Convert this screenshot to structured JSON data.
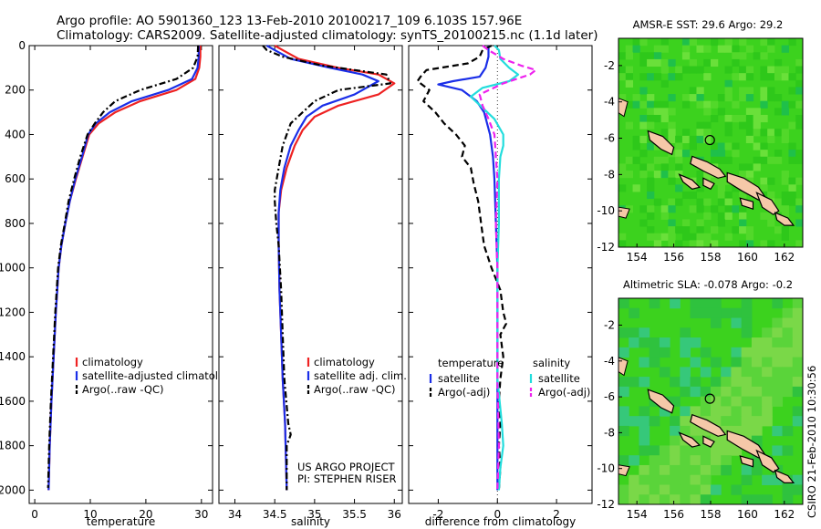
{
  "header": {
    "line1": "Argo profile: AO 5901360_123 13-Feb-2010 20100217_109 6.103S 157.96E",
    "line2": "Climatology: CARS2009. Satellite-adjusted climatology: synTS_20100215.nc (1.1d later)"
  },
  "footer_stamp": "CSIRO 21-Feb-2010 10:30:56",
  "colors": {
    "climatology": "#ee2222",
    "satellite": "#1a2ee8",
    "argo": "#000000",
    "sat_salinity": "#22dddd",
    "argo_salinity": "#ee22ee",
    "map_base": "#3cd21e",
    "land": "#f5c8a8"
  },
  "chart_data": [
    {
      "type": "line",
      "xlabel": "temperature",
      "ylabel": "",
      "xlim": [
        -1,
        32
      ],
      "ylim": [
        2060,
        0
      ],
      "x_ticks": [
        0,
        10,
        20,
        30
      ],
      "y_ticks": [
        0,
        200,
        400,
        600,
        800,
        1000,
        1200,
        1400,
        1600,
        1800,
        2000
      ],
      "legend": {
        "position": "lower-right",
        "entries": [
          "climatology",
          "satellite-adjusted climatology",
          "Argo(..raw -QC)"
        ]
      },
      "series": [
        {
          "name": "climatology",
          "style": "solid",
          "values": [
            [
              29.8,
              0
            ],
            [
              29.8,
              50
            ],
            [
              29.6,
              100
            ],
            [
              28.9,
              150
            ],
            [
              25.5,
              200
            ],
            [
              19,
              250
            ],
            [
              14.5,
              300
            ],
            [
              11.5,
              350
            ],
            [
              9.8,
              400
            ],
            [
              8.6,
              500
            ],
            [
              7.4,
              600
            ],
            [
              6.3,
              700
            ],
            [
              5.5,
              800
            ],
            [
              4.8,
              900
            ],
            [
              4.3,
              1000
            ],
            [
              3.8,
              1200
            ],
            [
              3.4,
              1400
            ],
            [
              3.0,
              1600
            ],
            [
              2.7,
              1800
            ],
            [
              2.5,
              2000
            ]
          ]
        },
        {
          "name": "satellite-adjusted climatology",
          "style": "solid",
          "values": [
            [
              29.5,
              0
            ],
            [
              29.5,
              50
            ],
            [
              29.3,
              100
            ],
            [
              28.3,
              150
            ],
            [
              24,
              200
            ],
            [
              17.5,
              250
            ],
            [
              13.5,
              300
            ],
            [
              11,
              350
            ],
            [
              9.6,
              400
            ],
            [
              8.5,
              500
            ],
            [
              7.3,
              600
            ],
            [
              6.3,
              700
            ],
            [
              5.5,
              800
            ],
            [
              4.8,
              900
            ],
            [
              4.3,
              1000
            ],
            [
              3.8,
              1200
            ],
            [
              3.4,
              1400
            ],
            [
              3.0,
              1600
            ],
            [
              2.7,
              1800
            ],
            [
              2.5,
              2000
            ]
          ]
        },
        {
          "name": "Argo(..raw -QC)",
          "style": "dashdot",
          "values": [
            [
              29.4,
              0
            ],
            [
              29.3,
              50
            ],
            [
              28.5,
              100
            ],
            [
              25.5,
              150
            ],
            [
              19,
              200
            ],
            [
              14.5,
              250
            ],
            [
              12.3,
              300
            ],
            [
              10.8,
              350
            ],
            [
              9.5,
              400
            ],
            [
              8.2,
              500
            ],
            [
              7.1,
              600
            ],
            [
              6.1,
              700
            ],
            [
              5.4,
              800
            ],
            [
              4.7,
              900
            ],
            [
              4.2,
              1000
            ],
            [
              3.7,
              1200
            ],
            [
              3.3,
              1400
            ],
            [
              2.9,
              1600
            ],
            [
              2.6,
              1800
            ],
            [
              2.4,
              1990
            ]
          ]
        }
      ]
    },
    {
      "type": "line",
      "xlabel": "salinity",
      "xlim": [
        33.8,
        36.1
      ],
      "ylim": [
        2060,
        0
      ],
      "x_ticks": [
        34,
        34.5,
        35,
        35.5,
        36
      ],
      "legend": {
        "position": "lower-right",
        "entries": [
          "climatology",
          "satellite adj. clim.",
          "Argo(..raw -QC)"
        ]
      },
      "annotation": [
        "US ARGO PROJECT",
        "PI: STEPHEN RISER"
      ],
      "series": [
        {
          "name": "climatology",
          "style": "solid",
          "values": [
            [
              34.5,
              0
            ],
            [
              34.6,
              20
            ],
            [
              34.8,
              60
            ],
            [
              35.3,
              100
            ],
            [
              35.8,
              130
            ],
            [
              36.0,
              170
            ],
            [
              35.8,
              220
            ],
            [
              35.3,
              270
            ],
            [
              35.0,
              320
            ],
            [
              34.85,
              380
            ],
            [
              34.75,
              450
            ],
            [
              34.65,
              550
            ],
            [
              34.58,
              650
            ],
            [
              34.55,
              750
            ],
            [
              34.55,
              900
            ],
            [
              34.56,
              1100
            ],
            [
              34.58,
              1300
            ],
            [
              34.6,
              1500
            ],
            [
              34.63,
              1700
            ],
            [
              34.65,
              2000
            ]
          ]
        },
        {
          "name": "satellite adj. clim.",
          "style": "solid",
          "values": [
            [
              34.4,
              0
            ],
            [
              34.5,
              20
            ],
            [
              34.7,
              60
            ],
            [
              35.2,
              100
            ],
            [
              35.6,
              130
            ],
            [
              35.8,
              160
            ],
            [
              35.5,
              220
            ],
            [
              35.1,
              270
            ],
            [
              34.9,
              320
            ],
            [
              34.8,
              380
            ],
            [
              34.7,
              450
            ],
            [
              34.62,
              550
            ],
            [
              34.57,
              650
            ],
            [
              34.55,
              750
            ],
            [
              34.55,
              900
            ],
            [
              34.56,
              1100
            ],
            [
              34.58,
              1300
            ],
            [
              34.6,
              1500
            ],
            [
              34.63,
              1700
            ],
            [
              34.65,
              2000
            ]
          ]
        },
        {
          "name": "Argo(..raw -QC)",
          "style": "dashdot",
          "values": [
            [
              34.35,
              0
            ],
            [
              34.4,
              20
            ],
            [
              34.6,
              50
            ],
            [
              35.1,
              90
            ],
            [
              35.9,
              130
            ],
            [
              35.95,
              170
            ],
            [
              35.3,
              200
            ],
            [
              35.0,
              250
            ],
            [
              34.85,
              300
            ],
            [
              34.7,
              350
            ],
            [
              34.65,
              400
            ],
            [
              34.6,
              450
            ],
            [
              34.55,
              550
            ],
            [
              34.5,
              650
            ],
            [
              34.5,
              700
            ],
            [
              34.52,
              800
            ],
            [
              34.55,
              900
            ],
            [
              34.58,
              1100
            ],
            [
              34.6,
              1300
            ],
            [
              34.62,
              1500
            ],
            [
              34.67,
              1700
            ],
            [
              34.7,
              1750
            ],
            [
              34.65,
              1800
            ],
            [
              34.65,
              2000
            ]
          ]
        }
      ]
    },
    {
      "type": "line",
      "xlabel": "difference from climatology",
      "xlim": [
        -3,
        3.2
      ],
      "ylim": [
        2060,
        0
      ],
      "x_ticks": [
        -2,
        0,
        2
      ],
      "reference_line_x": 0,
      "legend": {
        "position": "lower-center",
        "groups": [
          {
            "title": "temperature",
            "entries": [
              "satellite",
              "Argo(-adj)"
            ]
          },
          {
            "title": "salinity",
            "entries": [
              "satellite",
              "Argo(-adj)"
            ]
          }
        ]
      },
      "series": [
        {
          "name": "satellite",
          "group": "temperature",
          "style": "solid",
          "values": [
            [
              -0.3,
              0
            ],
            [
              -0.3,
              50
            ],
            [
              -0.4,
              100
            ],
            [
              -0.6,
              140
            ],
            [
              -1.5,
              160
            ],
            [
              -2.0,
              175
            ],
            [
              -1.2,
              200
            ],
            [
              -0.7,
              250
            ],
            [
              -0.45,
              300
            ],
            [
              -0.25,
              400
            ],
            [
              -0.15,
              500
            ],
            [
              -0.1,
              600
            ],
            [
              -0.05,
              800
            ],
            [
              0,
              1000
            ],
            [
              0,
              2000
            ]
          ]
        },
        {
          "name": "Argo(-adj)",
          "group": "temperature",
          "style": "dashed",
          "values": [
            [
              -0.2,
              0
            ],
            [
              -0.5,
              20
            ],
            [
              -0.6,
              50
            ],
            [
              -1.0,
              80
            ],
            [
              -2.4,
              110
            ],
            [
              -2.6,
              140
            ],
            [
              -2.7,
              160
            ],
            [
              -2.3,
              200
            ],
            [
              -2.5,
              250
            ],
            [
              -2.1,
              300
            ],
            [
              -1.8,
              350
            ],
            [
              -1.4,
              400
            ],
            [
              -1.1,
              450
            ],
            [
              -1.2,
              500
            ],
            [
              -0.9,
              550
            ],
            [
              -0.8,
              620
            ],
            [
              -0.65,
              700
            ],
            [
              -0.55,
              800
            ],
            [
              -0.45,
              900
            ],
            [
              -0.2,
              1000
            ],
            [
              0.1,
              1100
            ],
            [
              0.2,
              1200
            ],
            [
              0.3,
              1250
            ],
            [
              0.1,
              1300
            ],
            [
              0.2,
              1400
            ],
            [
              0.1,
              1500
            ],
            [
              0.05,
              1600
            ],
            [
              0.1,
              1700
            ],
            [
              0.05,
              1800
            ],
            [
              0.1,
              1900
            ],
            [
              0.05,
              2000
            ]
          ]
        },
        {
          "name": "satellite",
          "group": "salinity",
          "style": "solid",
          "values": [
            [
              -0.1,
              0
            ],
            [
              0.05,
              20
            ],
            [
              0.1,
              60
            ],
            [
              0.4,
              100
            ],
            [
              0.7,
              130
            ],
            [
              0.4,
              160
            ],
            [
              -0.5,
              190
            ],
            [
              -0.9,
              230
            ],
            [
              -0.5,
              280
            ],
            [
              -0.1,
              330
            ],
            [
              0.2,
              400
            ],
            [
              0.2,
              450
            ],
            [
              0.1,
              500
            ],
            [
              0.05,
              600
            ],
            [
              0.05,
              800
            ],
            [
              0,
              1000
            ],
            [
              0,
              1500
            ],
            [
              0.15,
              1700
            ],
            [
              0.2,
              1800
            ],
            [
              0.1,
              1900
            ],
            [
              0.05,
              2000
            ]
          ]
        },
        {
          "name": "Argo(-adj)",
          "group": "salinity",
          "style": "dashed",
          "values": [
            [
              -0.5,
              0
            ],
            [
              -0.3,
              20
            ],
            [
              0.2,
              60
            ],
            [
              0.8,
              90
            ],
            [
              1.3,
              110
            ],
            [
              1.1,
              130
            ],
            [
              0.2,
              170
            ],
            [
              -0.6,
              220
            ],
            [
              -0.5,
              270
            ],
            [
              -0.3,
              330
            ],
            [
              -0.1,
              400
            ],
            [
              -0.05,
              500
            ],
            [
              0,
              600
            ],
            [
              -0.05,
              800
            ],
            [
              0,
              1000
            ],
            [
              0,
              1500
            ],
            [
              0.05,
              1800
            ],
            [
              0,
              2000
            ]
          ]
        }
      ]
    },
    {
      "type": "heatmap",
      "title": "AMSR-E SST: 29.6 Argo: 29.2",
      "xlim": [
        153,
        163
      ],
      "ylim": [
        -12,
        -0.5
      ],
      "x_ticks": [
        154,
        156,
        158,
        160,
        162
      ],
      "y_ticks": [
        -2,
        -4,
        -6,
        -8,
        -10,
        -12
      ],
      "marker": {
        "lon": 157.96,
        "lat": -6.103
      }
    },
    {
      "type": "heatmap",
      "title": "Altimetric SLA: -0.078 Argo: -0.2",
      "xlim": [
        153,
        163
      ],
      "ylim": [
        -12,
        -0.5
      ],
      "x_ticks": [
        154,
        156,
        158,
        160,
        162
      ],
      "y_ticks": [
        -2,
        -4,
        -6,
        -8,
        -10,
        -12
      ],
      "marker": {
        "lon": 157.96,
        "lat": -6.103
      }
    }
  ]
}
